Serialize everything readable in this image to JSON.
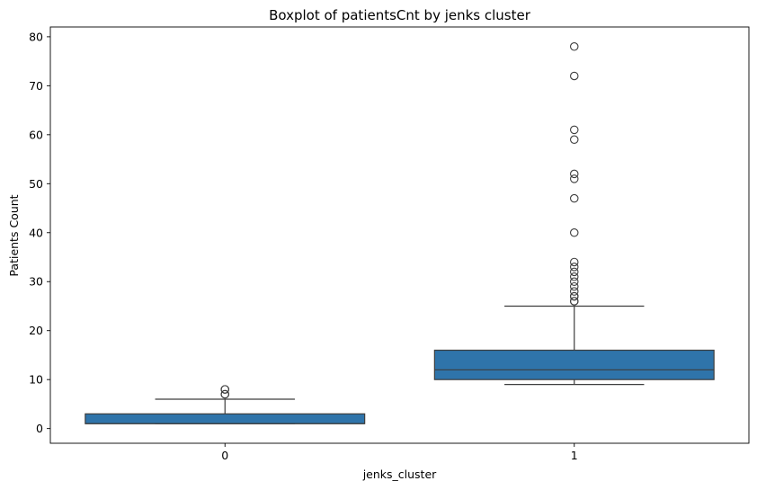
{
  "chart_data": {
    "type": "boxplot",
    "title": "Boxplot of patientsCnt by jenks cluster",
    "xlabel": "jenks_cluster",
    "ylabel": "Patients Count",
    "categories": [
      "0",
      "1"
    ],
    "yticks": [
      0,
      10,
      20,
      30,
      40,
      50,
      60,
      70,
      80
    ],
    "ylim": [
      -3,
      82
    ],
    "grid": false,
    "box_color": "#2f74aa",
    "line_color": "#3d3d3d",
    "boxes": [
      {
        "category": "0",
        "whislo": 1,
        "q1": 1,
        "median": 1,
        "q3": 3,
        "whishi": 6,
        "fliers": [
          7,
          7,
          8,
          8
        ]
      },
      {
        "category": "1",
        "whislo": 9,
        "q1": 10,
        "median": 12,
        "q3": 16,
        "whishi": 25,
        "fliers": [
          26,
          26,
          27,
          27,
          28,
          29,
          30,
          31,
          32,
          33,
          34,
          40,
          47,
          51,
          52,
          59,
          61,
          72,
          78
        ]
      }
    ]
  }
}
